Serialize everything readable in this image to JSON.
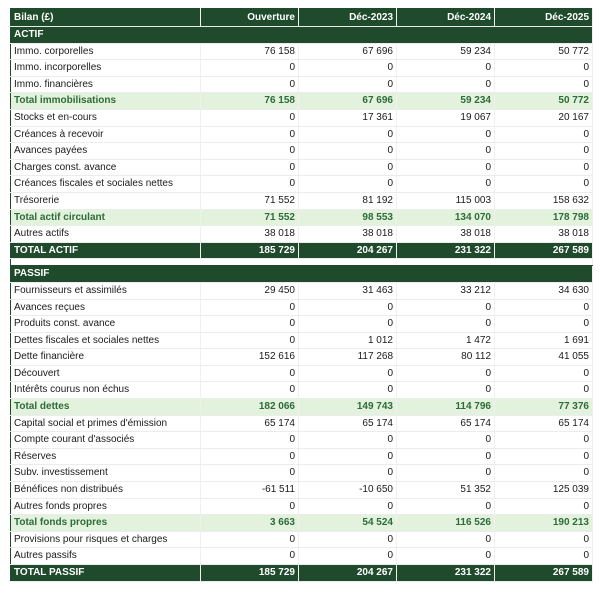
{
  "table": {
    "header": [
      "Bilan (£)",
      "Ouverture",
      "Déc-2023",
      "Déc-2024",
      "Déc-2025"
    ],
    "sections": [
      {
        "title": "ACTIF",
        "rows": [
          [
            "Immo. corporelles",
            "76 158",
            "67 696",
            "59 234",
            "50 772"
          ],
          [
            "Immo. incorporelles",
            "0",
            "0",
            "0",
            "0"
          ],
          [
            "Immo. financières",
            "0",
            "0",
            "0",
            "0"
          ],
          [
            "Total immobilisations",
            "76 158",
            "67 696",
            "59 234",
            "50 772"
          ],
          [
            "Stocks et en-cours",
            "0",
            "17 361",
            "19 067",
            "20 167"
          ],
          [
            "Créances à recevoir",
            "0",
            "0",
            "0",
            "0"
          ],
          [
            "Avances payées",
            "0",
            "0",
            "0",
            "0"
          ],
          [
            "Charges const. avance",
            "0",
            "0",
            "0",
            "0"
          ],
          [
            "Créances fiscales et sociales nettes",
            "0",
            "0",
            "0",
            "0"
          ],
          [
            "Trésorerie",
            "71 552",
            "81 192",
            "115 003",
            "158 632"
          ],
          [
            "Total actif circulant",
            "71 552",
            "98 553",
            "134 070",
            "178 798"
          ],
          [
            "Autres actifs",
            "38 018",
            "38 018",
            "38 018",
            "38 018"
          ],
          [
            "TOTAL ACTIF",
            "185 729",
            "204 267",
            "231 322",
            "267 589"
          ]
        ]
      },
      {
        "title": "PASSIF",
        "rows": [
          [
            "Fournisseurs et assimilés",
            "29 450",
            "31 463",
            "33 212",
            "34 630"
          ],
          [
            "Avances reçues",
            "0",
            "0",
            "0",
            "0"
          ],
          [
            "Produits const. avance",
            "0",
            "0",
            "0",
            "0"
          ],
          [
            "Dettes fiscales et sociales nettes",
            "0",
            "1 012",
            "1 472",
            "1 691"
          ],
          [
            "Dette financière",
            "152 616",
            "117 268",
            "80 112",
            "41 055"
          ],
          [
            "Découvert",
            "0",
            "0",
            "0",
            "0"
          ],
          [
            "Intérêts courus non échus",
            "0",
            "0",
            "0",
            "0"
          ],
          [
            "Total dettes",
            "182 066",
            "149 743",
            "114 796",
            "77 376"
          ],
          [
            "Capital social et primes d'émission",
            "65 174",
            "65 174",
            "65 174",
            "65 174"
          ],
          [
            "Compte courant d'associés",
            "0",
            "0",
            "0",
            "0"
          ],
          [
            "Réserves",
            "0",
            "0",
            "0",
            "0"
          ],
          [
            "Subv. investissement",
            "0",
            "0",
            "0",
            "0"
          ],
          [
            "Bénéfices non distribués",
            "-61 511",
            "-10 650",
            "51 352",
            "125 039"
          ],
          [
            "Autres fonds propres",
            "0",
            "0",
            "0",
            "0"
          ],
          [
            "Total fonds propres",
            "3 663",
            "54 524",
            "116 526",
            "190 213"
          ],
          [
            "Provisions pour risques et charges",
            "0",
            "0",
            "0",
            "0"
          ],
          [
            "Autres passifs",
            "0",
            "0",
            "0",
            "0"
          ],
          [
            "TOTAL PASSIF",
            "185 729",
            "204 267",
            "231 322",
            "267 589"
          ]
        ]
      }
    ]
  }
}
